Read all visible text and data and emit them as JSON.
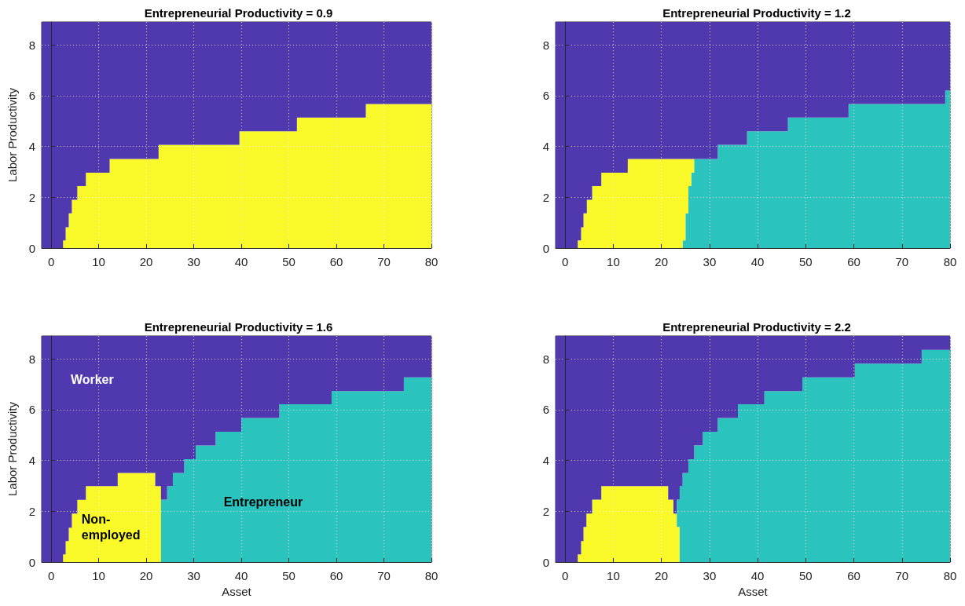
{
  "chart_data": [
    {
      "type": "area",
      "title": "Entrepreneurial Productivity = 0.9",
      "ylabel": "Labor Productivity",
      "stacked": true,
      "legend": false,
      "grid": true,
      "marker": "none",
      "xlim": [
        -2,
        80
      ],
      "xticks": [
        0,
        10,
        20,
        30,
        40,
        50,
        60,
        70,
        80
      ],
      "ylim": [
        0,
        8.9
      ],
      "yticks": [
        0,
        2,
        4,
        6,
        8
      ],
      "x": [
        -2,
        2.5,
        3.05,
        3.7,
        4.35,
        5.5,
        7.3,
        12.3,
        22.6,
        39.6,
        51.7,
        66.2,
        80
      ],
      "series": [
        {
          "color": "#f9f929",
          "values": [
            null,
            0.3,
            0.82,
            1.37,
            1.9,
            2.44,
            2.97,
            3.51,
            4.06,
            4.6,
            5.14,
            5.67,
            5.67
          ]
        },
        {
          "color": "#5039ae",
          "values": [
            8.9,
            8.6,
            8.08,
            7.53,
            7.0,
            6.46,
            5.93,
            5.39,
            4.84,
            4.3,
            3.76,
            3.23,
            3.23
          ]
        }
      ]
    },
    {
      "type": "area",
      "title": "Entrepreneurial Productivity = 1.2",
      "stacked": true,
      "legend": false,
      "grid": true,
      "marker": "none",
      "xlim": [
        -2,
        80
      ],
      "xticks": [
        0,
        10,
        20,
        30,
        40,
        50,
        60,
        70,
        80
      ],
      "ylim": [
        0,
        8.9
      ],
      "yticks": [
        0,
        2,
        4,
        6,
        8
      ],
      "x": [
        -2,
        2.6,
        3.3,
        3.8,
        4.5,
        5.6,
        7.5,
        13.0,
        24.4,
        25.0,
        25.6,
        26.2,
        26.8,
        31.7,
        37.8,
        46.3,
        58.9,
        79.0,
        80
      ],
      "series": [
        {
          "color": "#2ac3bd",
          "values": [
            null,
            null,
            null,
            null,
            null,
            null,
            null,
            null,
            0.3,
            1.37,
            2.44,
            2.97,
            3.51,
            4.06,
            4.6,
            5.14,
            5.67,
            6.2,
            6.2
          ]
        },
        {
          "color": "#f9f929",
          "values": [
            null,
            0.3,
            0.82,
            1.37,
            1.9,
            2.44,
            2.97,
            3.51,
            3.21,
            2.14,
            1.07,
            0.54,
            0,
            null,
            null,
            null,
            null,
            null,
            null
          ]
        },
        {
          "color": "#5039ae",
          "values": [
            8.9,
            8.6,
            8.08,
            7.53,
            7.0,
            6.46,
            5.93,
            5.39,
            5.39,
            5.39,
            5.39,
            5.39,
            5.39,
            4.84,
            4.3,
            3.76,
            3.23,
            2.7,
            2.7
          ]
        }
      ]
    },
    {
      "type": "area",
      "title": "Entrepreneurial Productivity = 1.6",
      "xlabel": "Asset",
      "ylabel": "Labor Productivity",
      "stacked": true,
      "legend": false,
      "grid": true,
      "marker": "none",
      "xlim": [
        -2,
        80
      ],
      "xticks": [
        0,
        10,
        20,
        30,
        40,
        50,
        60,
        70,
        80
      ],
      "ylim": [
        0,
        8.9
      ],
      "yticks": [
        0,
        2,
        4,
        6,
        8
      ],
      "x": [
        -2,
        2.5,
        3.05,
        3.7,
        4.35,
        5.5,
        7.3,
        14.0,
        21.9,
        23.1,
        24.4,
        25.6,
        28.0,
        30.4,
        34.6,
        40.0,
        48.0,
        59.0,
        74.2,
        80
      ],
      "series": [
        {
          "name": "Non-employed",
          "color": "#f9f929",
          "values": [
            null,
            0.3,
            0.83,
            1.35,
            1.91,
            2.45,
            2.99,
            3.51,
            2.99,
            0,
            null,
            null,
            null,
            null,
            null,
            null,
            null,
            null,
            null,
            null
          ]
        },
        {
          "name": "Entrepreneur",
          "color": "#2ac3bd",
          "values": [
            null,
            null,
            null,
            null,
            null,
            null,
            null,
            null,
            null,
            2.46,
            2.99,
            3.51,
            4.05,
            4.59,
            5.13,
            5.67,
            6.21,
            6.73,
            7.27,
            7.27
          ]
        },
        {
          "name": "Worker",
          "color": "#5039ae",
          "values": [
            8.9,
            8.6,
            8.07,
            7.55,
            6.99,
            6.45,
            5.91,
            5.39,
            5.91,
            6.44,
            5.91,
            5.39,
            4.85,
            4.31,
            3.77,
            3.23,
            2.69,
            2.17,
            1.63,
            1.63
          ]
        }
      ]
    },
    {
      "type": "area",
      "title": "Entrepreneurial Productivity = 2.2",
      "xlabel": "Asset",
      "stacked": true,
      "legend": false,
      "grid": true,
      "marker": "none",
      "xlim": [
        -2,
        80
      ],
      "xticks": [
        0,
        10,
        20,
        30,
        40,
        50,
        60,
        70,
        80
      ],
      "ylim": [
        0,
        8.9
      ],
      "yticks": [
        0,
        2,
        4,
        6,
        8
      ],
      "x": [
        -2,
        2.6,
        3.3,
        3.8,
        4.4,
        5.6,
        7.5,
        21.4,
        22.5,
        23.2,
        23.8,
        24.4,
        25.6,
        26.8,
        28.6,
        31.7,
        35.9,
        41.4,
        49.3,
        60.2,
        74.1,
        80
      ],
      "series": [
        {
          "color": "#f9f929",
          "values": [
            null,
            0.3,
            0.83,
            1.38,
            1.91,
            2.46,
            2.99,
            2.46,
            1.91,
            1.38,
            0,
            null,
            null,
            null,
            null,
            null,
            null,
            null,
            null,
            null,
            null,
            null
          ]
        },
        {
          "color": "#2ac3bd",
          "values": [
            null,
            null,
            null,
            null,
            null,
            null,
            null,
            null,
            null,
            1.08,
            2.99,
            3.51,
            4.05,
            4.6,
            5.13,
            5.67,
            6.21,
            6.73,
            7.27,
            7.81,
            8.35,
            8.35
          ]
        },
        {
          "color": "#5039ae",
          "values": [
            8.9,
            8.6,
            8.07,
            7.52,
            6.99,
            6.44,
            5.91,
            6.44,
            6.99,
            6.44,
            5.91,
            5.39,
            4.85,
            4.3,
            3.77,
            3.23,
            2.69,
            2.17,
            1.63,
            1.09,
            0.55,
            0.55
          ]
        }
      ]
    }
  ]
}
